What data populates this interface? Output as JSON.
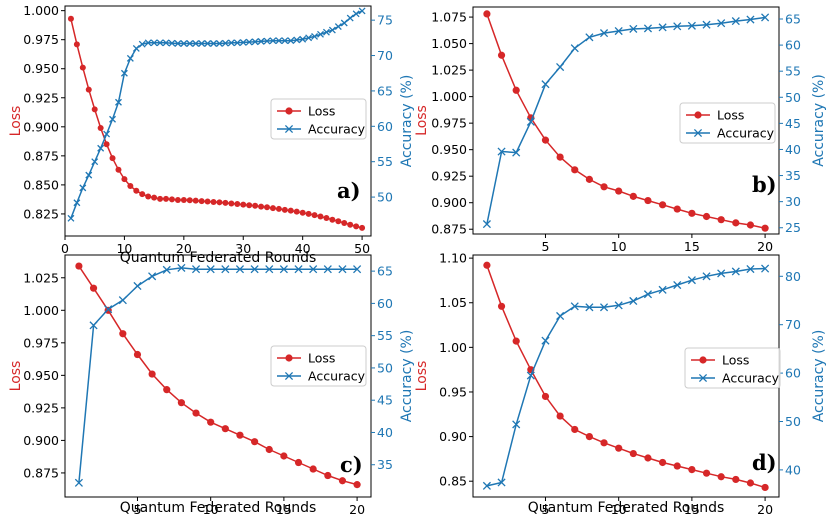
{
  "colors": {
    "loss": "#d62728",
    "accuracy": "#1f77b4"
  },
  "chart_data": [
    {
      "type": "line",
      "panel": "a)",
      "legend_position": "center-right",
      "xlabel": "Quantum Federated Rounds",
      "ylabel": "Loss",
      "y2label": "Accuracy (%)",
      "xlim": [
        0,
        51.5
      ],
      "ylim": [
        0.806,
        1.004
      ],
      "y2lim": [
        44.5,
        77
      ],
      "xticks": [
        0,
        10,
        20,
        30,
        40,
        50
      ],
      "yticks": [
        0.825,
        0.85,
        0.875,
        0.9,
        0.925,
        0.95,
        0.975,
        1.0
      ],
      "y2ticks": [
        50,
        55,
        60,
        65,
        70,
        75
      ],
      "x": [
        1,
        2,
        3,
        4,
        5,
        6,
        7,
        8,
        9,
        10,
        11,
        12,
        13,
        14,
        15,
        16,
        17,
        18,
        19,
        20,
        21,
        22,
        23,
        24,
        25,
        26,
        27,
        28,
        29,
        30,
        31,
        32,
        33,
        34,
        35,
        36,
        37,
        38,
        39,
        40,
        41,
        42,
        43,
        44,
        45,
        46,
        47,
        48,
        49,
        50
      ],
      "series": [
        {
          "name": "Loss",
          "axis": "left",
          "marker": "o",
          "values": [
            0.993,
            0.971,
            0.951,
            0.932,
            0.915,
            0.899,
            0.885,
            0.873,
            0.863,
            0.855,
            0.849,
            0.845,
            0.842,
            0.84,
            0.839,
            0.838,
            0.838,
            0.8375,
            0.837,
            0.837,
            0.8368,
            0.8365,
            0.836,
            0.8357,
            0.8353,
            0.835,
            0.8345,
            0.834,
            0.8335,
            0.833,
            0.8325,
            0.832,
            0.8313,
            0.8307,
            0.83,
            0.8293,
            0.8285,
            0.8278,
            0.827,
            0.826,
            0.825,
            0.824,
            0.8228,
            0.8215,
            0.82,
            0.8187,
            0.8172,
            0.8157,
            0.8143,
            0.813
          ]
        },
        {
          "name": "Accuracy",
          "axis": "right",
          "marker": "x",
          "values": [
            47.0,
            49.2,
            51.3,
            53.1,
            55.0,
            56.9,
            58.9,
            61.0,
            63.4,
            67.5,
            69.6,
            71.0,
            71.6,
            71.8,
            71.8,
            71.8,
            71.8,
            71.75,
            71.7,
            71.7,
            71.7,
            71.7,
            71.7,
            71.7,
            71.7,
            71.7,
            71.75,
            71.8,
            71.8,
            71.85,
            71.9,
            71.95,
            72.0,
            72.05,
            72.1,
            72.1,
            72.1,
            72.1,
            72.2,
            72.3,
            72.5,
            72.7,
            73.0,
            73.3,
            73.6,
            74.1,
            74.6,
            75.3,
            75.9,
            76.3
          ]
        }
      ]
    },
    {
      "type": "line",
      "panel": "b)",
      "legend_position": "center-right",
      "xlabel": "",
      "ylabel": "Loss",
      "y2label": "Accuracy (%)",
      "xlim": [
        0.05,
        20.95
      ],
      "ylim": [
        0.8705,
        1.0845
      ],
      "y2lim": [
        23.8,
        67.3
      ],
      "xticks": [
        5,
        10,
        15,
        20
      ],
      "yticks": [
        0.875,
        0.9,
        0.925,
        0.95,
        0.975,
        1.0,
        1.025,
        1.05,
        1.075
      ],
      "y2ticks": [
        25,
        30,
        35,
        40,
        45,
        50,
        55,
        60,
        65
      ],
      "x": [
        1,
        2,
        3,
        4,
        5,
        6,
        7,
        8,
        9,
        10,
        11,
        12,
        13,
        14,
        15,
        16,
        17,
        18,
        19,
        20
      ],
      "series": [
        {
          "name": "Loss",
          "axis": "left",
          "marker": "o",
          "values": [
            1.078,
            1.039,
            1.006,
            0.98,
            0.959,
            0.943,
            0.931,
            0.922,
            0.915,
            0.911,
            0.906,
            0.902,
            0.898,
            0.894,
            0.89,
            0.887,
            0.884,
            0.881,
            0.879,
            0.876
          ]
        },
        {
          "name": "Accuracy",
          "axis": "right",
          "marker": "x",
          "values": [
            25.7,
            39.6,
            39.4,
            45.3,
            52.5,
            55.8,
            59.4,
            61.5,
            62.3,
            62.7,
            63.1,
            63.2,
            63.4,
            63.6,
            63.7,
            63.9,
            64.2,
            64.6,
            64.9,
            65.3
          ]
        }
      ]
    },
    {
      "type": "line",
      "panel": "c)",
      "legend_position": "center-right",
      "xlabel": "Quantum Federated Rounds",
      "ylabel": "Loss",
      "y2label": "Accuracy (%)",
      "xlim": [
        0.05,
        20.95
      ],
      "ylim": [
        0.8565,
        1.0425
      ],
      "y2lim": [
        30.0,
        67.5
      ],
      "xticks": [
        5,
        10,
        15,
        20
      ],
      "yticks": [
        0.875,
        0.9,
        0.925,
        0.95,
        0.975,
        1.0,
        1.025
      ],
      "y2ticks": [
        35,
        40,
        45,
        50,
        55,
        60,
        65
      ],
      "x": [
        1,
        2,
        3,
        4,
        5,
        6,
        7,
        8,
        9,
        10,
        11,
        12,
        13,
        14,
        15,
        16,
        17,
        18,
        19,
        20
      ],
      "series": [
        {
          "name": "Loss",
          "axis": "left",
          "marker": "o",
          "values": [
            1.034,
            1.017,
            1.0,
            0.982,
            0.966,
            0.951,
            0.939,
            0.929,
            0.921,
            0.914,
            0.909,
            0.904,
            0.899,
            0.893,
            0.888,
            0.883,
            0.878,
            0.873,
            0.869,
            0.866
          ]
        },
        {
          "name": "Accuracy",
          "axis": "right",
          "marker": "x",
          "values": [
            32.2,
            56.6,
            59.1,
            60.5,
            62.7,
            64.2,
            65.2,
            65.5,
            65.3,
            65.3,
            65.3,
            65.3,
            65.3,
            65.3,
            65.3,
            65.3,
            65.3,
            65.3,
            65.3,
            65.3
          ]
        }
      ]
    },
    {
      "type": "line",
      "panel": "d)",
      "legend_position": "center-right",
      "xlabel": "Quantum Federated Rounds",
      "ylabel": "Loss",
      "y2label": "Accuracy (%)",
      "xlim": [
        0.05,
        20.95
      ],
      "ylim": [
        0.8323,
        1.1035
      ],
      "y2lim": [
        34.4,
        84.4
      ],
      "xticks": [
        5,
        10,
        15,
        20
      ],
      "yticks": [
        0.85,
        0.9,
        0.95,
        1.0,
        1.05,
        1.1
      ],
      "y2ticks": [
        40,
        50,
        60,
        70,
        80
      ],
      "x": [
        1,
        2,
        3,
        4,
        5,
        6,
        7,
        8,
        9,
        10,
        11,
        12,
        13,
        14,
        15,
        16,
        17,
        18,
        19,
        20
      ],
      "series": [
        {
          "name": "Loss",
          "axis": "left",
          "marker": "o",
          "values": [
            1.092,
            1.046,
            1.007,
            0.975,
            0.945,
            0.923,
            0.908,
            0.9,
            0.893,
            0.887,
            0.881,
            0.876,
            0.871,
            0.867,
            0.863,
            0.859,
            0.855,
            0.852,
            0.848,
            0.843
          ]
        },
        {
          "name": "Accuracy",
          "axis": "right",
          "marker": "x",
          "values": [
            36.7,
            37.4,
            49.4,
            59.5,
            66.7,
            71.8,
            73.8,
            73.6,
            73.6,
            74.0,
            74.9,
            76.3,
            77.2,
            78.2,
            79.2,
            80.0,
            80.6,
            81.0,
            81.5,
            81.6
          ]
        }
      ]
    }
  ]
}
